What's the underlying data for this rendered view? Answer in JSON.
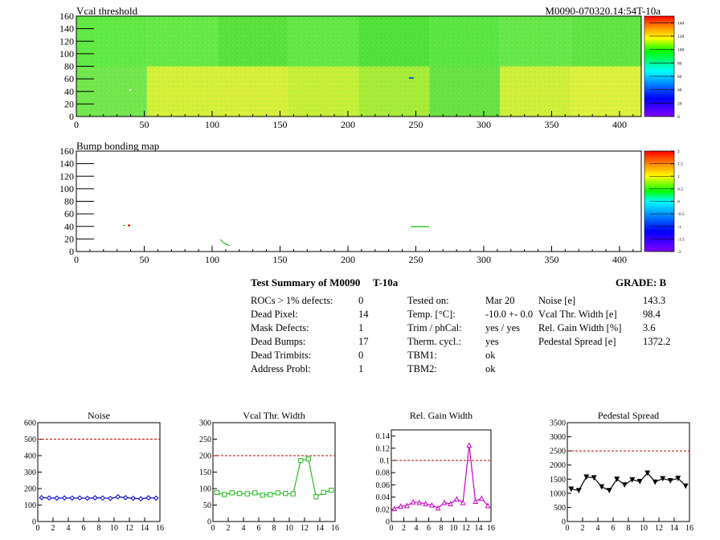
{
  "vcal_map": {
    "title": "Vcal threshold",
    "id_text": "M0090-070320.14:54T-10a",
    "x_ticks": [
      "0",
      "50",
      "100",
      "150",
      "200",
      "250",
      "300",
      "350",
      "400"
    ],
    "y_ticks": [
      "0",
      "20",
      "40",
      "60",
      "80",
      "100",
      "120",
      "140",
      "160"
    ],
    "z_ticks": [
      "0",
      "20",
      "40",
      "60",
      "80",
      "100",
      "120",
      "140"
    ],
    "xlim": [
      0,
      416
    ],
    "ylim": [
      0,
      160
    ],
    "zlim": [
      0,
      150
    ]
  },
  "bump_map": {
    "title": "Bump bonding map",
    "x_ticks": [
      "0",
      "50",
      "100",
      "150",
      "200",
      "250",
      "300",
      "350",
      "400"
    ],
    "y_ticks": [
      "0",
      "20",
      "40",
      "60",
      "80",
      "100",
      "120",
      "140",
      "160"
    ],
    "z_ticks": [
      "-2",
      "-1.5",
      "-1",
      "-0.5",
      "0",
      "0.5",
      "1",
      "1.5",
      "2"
    ],
    "xlim": [
      0,
      416
    ],
    "ylim": [
      0,
      160
    ],
    "zlim": [
      -2,
      2
    ]
  },
  "summary": {
    "title": "Test Summary of M0090",
    "temp_tag": "T-10a",
    "grade_label": "GRADE:  B",
    "col1": [
      {
        "label": "ROCs > 1% defects:",
        "value": "0"
      },
      {
        "label": "Dead Pixel:",
        "value": "14"
      },
      {
        "label": "Mask Defects:",
        "value": "1"
      },
      {
        "label": "Dead Bumps:",
        "value": "17"
      },
      {
        "label": "Dead Trimbits:",
        "value": "0"
      },
      {
        "label": "Address Probl:",
        "value": "1"
      }
    ],
    "col2": [
      {
        "label": "Tested on:",
        "value": "Mar 20"
      },
      {
        "label": "Temp. [°C]:",
        "value": "-10.0 +- 0.0"
      },
      {
        "label": "Trim / phCal:",
        "value": "yes / yes"
      },
      {
        "label": "Therm. cycl.:",
        "value": "yes"
      },
      {
        "label": "TBM1:",
        "value": "ok"
      },
      {
        "label": "TBM2:",
        "value": "ok"
      }
    ],
    "col3": [
      {
        "label": "Noise [e]",
        "value": "143.3"
      },
      {
        "label": "Vcal Thr. Width [e]",
        "value": "98.4"
      },
      {
        "label": "Rel. Gain Width [%]",
        "value": "3.6"
      },
      {
        "label": "Pedestal Spread [e]",
        "value": "1372.2"
      }
    ]
  },
  "chart_data": [
    {
      "type": "line",
      "title": "Noise",
      "color": "#0000cc",
      "marker": "diamond",
      "x": [
        0,
        1,
        2,
        3,
        4,
        5,
        6,
        7,
        8,
        9,
        10,
        11,
        12,
        13,
        14,
        15
      ],
      "values": [
        145,
        143,
        142,
        143,
        142,
        143,
        141,
        144,
        143,
        140,
        150,
        145,
        141,
        138,
        144,
        142
      ],
      "ylim": [
        0,
        600
      ],
      "xlim": [
        0,
        16
      ],
      "threshold": 500,
      "y_ticks": [
        "0",
        "100",
        "200",
        "300",
        "400",
        "500",
        "600"
      ],
      "x_ticks": [
        "0",
        "2",
        "4",
        "6",
        "8",
        "10",
        "12",
        "14",
        "16"
      ]
    },
    {
      "type": "line",
      "title": "Vcal Thr. Width",
      "color": "#22bb22",
      "marker": "square",
      "x": [
        0,
        1,
        2,
        3,
        4,
        5,
        6,
        7,
        8,
        9,
        10,
        11,
        12,
        13,
        14,
        15
      ],
      "values": [
        88,
        82,
        87,
        85,
        84,
        87,
        80,
        82,
        87,
        85,
        84,
        185,
        190,
        75,
        88,
        95
      ],
      "ylim": [
        0,
        300
      ],
      "xlim": [
        0,
        16
      ],
      "threshold": 200,
      "y_ticks": [
        "0",
        "50",
        "100",
        "150",
        "200",
        "250",
        "300"
      ],
      "x_ticks": [
        "0",
        "2",
        "4",
        "6",
        "8",
        "10",
        "12",
        "14",
        "16"
      ]
    },
    {
      "type": "line",
      "title": "Rel. Gain Width",
      "color": "#cc00cc",
      "marker": "triangle",
      "x": [
        0,
        1,
        2,
        3,
        4,
        5,
        6,
        7,
        8,
        9,
        10,
        11,
        12,
        13,
        14,
        15
      ],
      "values": [
        0.021,
        0.025,
        0.026,
        0.032,
        0.031,
        0.029,
        0.027,
        0.022,
        0.031,
        0.029,
        0.037,
        0.031,
        0.125,
        0.033,
        0.038,
        0.026
      ],
      "ylim": [
        0,
        0.15
      ],
      "xlim": [
        0,
        16
      ],
      "threshold": 0.1,
      "y_ticks": [
        "0",
        "0.02",
        "0.04",
        "0.06",
        "0.08",
        "0.1",
        "0.12",
        "0.14"
      ],
      "x_ticks": [
        "0",
        "2",
        "4",
        "6",
        "8",
        "10",
        "12",
        "14",
        "16"
      ]
    },
    {
      "type": "line",
      "title": "Pedestal Spread",
      "color": "#000000",
      "marker": "triangle-down",
      "x": [
        0,
        1,
        2,
        3,
        4,
        5,
        6,
        7,
        8,
        9,
        10,
        11,
        12,
        13,
        14,
        15
      ],
      "values": [
        1150,
        1100,
        1580,
        1550,
        1230,
        1100,
        1500,
        1300,
        1480,
        1420,
        1720,
        1400,
        1520,
        1450,
        1530,
        1260
      ],
      "ylim": [
        0,
        3500
      ],
      "xlim": [
        0,
        16
      ],
      "threshold": 2500,
      "y_ticks": [
        "0",
        "500",
        "1000",
        "1500",
        "2000",
        "2500",
        "3000",
        "3500"
      ],
      "x_ticks": [
        "0",
        "2",
        "4",
        "6",
        "8",
        "10",
        "12",
        "14",
        "16"
      ]
    }
  ]
}
